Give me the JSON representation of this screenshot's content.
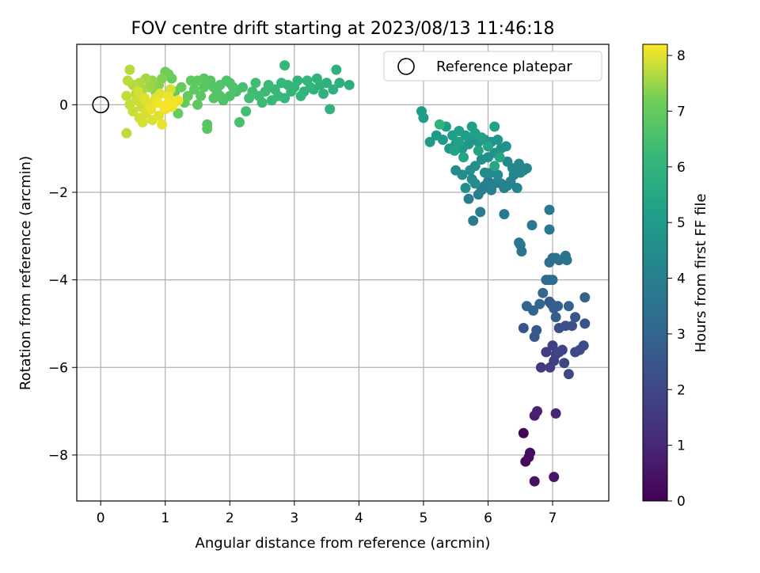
{
  "chart_data": {
    "type": "scatter",
    "title": "FOV centre drift starting at 2023/08/13 11:46:18",
    "xlabel": "Angular distance from reference (arcmin)",
    "ylabel": "Rotation from reference (arcmin)",
    "colorbar_label": "Hours from first FF file",
    "xlim": [
      -0.37,
      7.87
    ],
    "ylim": [
      -9.05,
      1.38
    ],
    "x_ticks": [
      0,
      1,
      2,
      3,
      4,
      5,
      6,
      7
    ],
    "y_ticks": [
      -8,
      -6,
      -4,
      -2,
      0
    ],
    "colorbar_range": [
      0,
      8.2
    ],
    "colorbar_ticks": [
      0,
      1,
      2,
      3,
      4,
      5,
      6,
      7,
      8
    ],
    "colormap": "viridis",
    "grid": true,
    "legend": {
      "position": "top-right",
      "entries": [
        "Reference platepar"
      ]
    },
    "reference_point": {
      "x": 0,
      "y": 0,
      "marker": "open-circle"
    },
    "columns": [
      "x",
      "y",
      "hours"
    ],
    "points": [
      [
        6.55,
        -7.5,
        0.1
      ],
      [
        6.58,
        -8.15,
        0.2
      ],
      [
        6.63,
        -8.05,
        0.3
      ],
      [
        6.65,
        -7.95,
        0.35
      ],
      [
        6.72,
        -8.6,
        0.45
      ],
      [
        7.02,
        -8.5,
        0.55
      ],
      [
        6.72,
        -7.1,
        0.8
      ],
      [
        6.76,
        -7.0,
        0.9
      ],
      [
        7.05,
        -7.05,
        1.0
      ],
      [
        6.82,
        -6.0,
        1.5
      ],
      [
        6.9,
        -5.65,
        1.6
      ],
      [
        6.96,
        -6.0,
        1.65
      ],
      [
        7.0,
        -5.5,
        1.7
      ],
      [
        7.02,
        -5.85,
        1.75
      ],
      [
        7.05,
        -5.7,
        1.8
      ],
      [
        7.1,
        -5.65,
        1.85
      ],
      [
        7.15,
        -5.6,
        1.9
      ],
      [
        7.18,
        -5.9,
        1.95
      ],
      [
        7.25,
        -6.15,
        2.0
      ],
      [
        7.35,
        -5.65,
        2.05
      ],
      [
        7.42,
        -5.6,
        2.1
      ],
      [
        7.48,
        -5.5,
        2.15
      ],
      [
        7.1,
        -5.1,
        2.2
      ],
      [
        7.2,
        -5.05,
        2.25
      ],
      [
        7.3,
        -5.05,
        2.3
      ],
      [
        7.5,
        -5.0,
        2.35
      ],
      [
        7.35,
        -4.85,
        2.4
      ],
      [
        6.55,
        -5.1,
        2.45
      ],
      [
        6.72,
        -5.3,
        2.5
      ],
      [
        6.75,
        -5.15,
        2.55
      ],
      [
        6.95,
        -4.5,
        2.6
      ],
      [
        6.98,
        -4.55,
        2.65
      ],
      [
        7.02,
        -4.65,
        2.7
      ],
      [
        7.05,
        -4.85,
        2.75
      ],
      [
        7.08,
        -4.6,
        2.8
      ],
      [
        7.25,
        -4.6,
        2.85
      ],
      [
        7.5,
        -4.4,
        2.9
      ],
      [
        6.6,
        -4.6,
        2.95
      ],
      [
        6.7,
        -4.7,
        3.0
      ],
      [
        6.8,
        -4.55,
        3.05
      ],
      [
        6.85,
        -4.3,
        3.1
      ],
      [
        6.9,
        -4.0,
        3.15
      ],
      [
        6.95,
        -4.0,
        3.2
      ],
      [
        7.0,
        -4.0,
        3.25
      ],
      [
        6.95,
        -3.6,
        3.3
      ],
      [
        7.0,
        -3.5,
        3.35
      ],
      [
        7.05,
        -3.5,
        3.4
      ],
      [
        7.1,
        -3.55,
        3.45
      ],
      [
        7.2,
        -3.45,
        3.5
      ],
      [
        7.22,
        -3.55,
        3.55
      ],
      [
        6.5,
        -3.2,
        3.55
      ],
      [
        6.52,
        -3.35,
        3.6
      ],
      [
        6.48,
        -3.15,
        3.65
      ],
      [
        6.95,
        -2.85,
        3.7
      ],
      [
        6.95,
        -2.4,
        3.72
      ],
      [
        6.68,
        -2.75,
        3.75
      ],
      [
        6.25,
        -2.5,
        3.8
      ],
      [
        5.77,
        -2.65,
        3.85
      ],
      [
        5.88,
        -2.45,
        3.88
      ],
      [
        5.7,
        -2.15,
        3.9
      ],
      [
        5.85,
        -2.05,
        3.93
      ],
      [
        5.9,
        -1.95,
        3.95
      ],
      [
        5.95,
        -1.85,
        3.97
      ],
      [
        6.0,
        -1.75,
        4.0
      ],
      [
        6.05,
        -1.95,
        4.02
      ],
      [
        6.1,
        -1.8,
        4.05
      ],
      [
        6.2,
        -1.8,
        4.08
      ],
      [
        6.25,
        -1.9,
        4.1
      ],
      [
        6.3,
        -1.85,
        4.12
      ],
      [
        6.35,
        -1.75,
        4.15
      ],
      [
        6.45,
        -1.9,
        4.18
      ],
      [
        6.4,
        -1.6,
        4.2
      ],
      [
        6.5,
        -1.55,
        4.22
      ],
      [
        6.55,
        -1.5,
        4.25
      ],
      [
        6.6,
        -1.45,
        4.28
      ],
      [
        6.48,
        -1.35,
        4.3
      ],
      [
        6.38,
        -1.45,
        4.32
      ],
      [
        6.3,
        -1.3,
        4.35
      ],
      [
        6.15,
        -1.6,
        4.38
      ],
      [
        6.05,
        -1.55,
        4.4
      ],
      [
        5.95,
        -1.55,
        4.42
      ],
      [
        5.8,
        -1.8,
        4.45
      ],
      [
        5.75,
        -1.7,
        4.48
      ],
      [
        5.6,
        -1.6,
        4.5
      ],
      [
        5.5,
        -1.5,
        4.52
      ],
      [
        5.72,
        -1.5,
        4.55
      ],
      [
        5.65,
        -1.9,
        4.58
      ],
      [
        5.8,
        -1.4,
        4.6
      ],
      [
        5.9,
        -1.25,
        4.62
      ],
      [
        6.0,
        -1.2,
        4.65
      ],
      [
        6.1,
        -1.1,
        4.68
      ],
      [
        6.2,
        -1.0,
        4.7
      ],
      [
        6.28,
        -0.95,
        4.72
      ],
      [
        6.15,
        -0.8,
        4.75
      ],
      [
        6.05,
        -0.85,
        4.78
      ],
      [
        5.95,
        -0.8,
        4.8
      ],
      [
        5.85,
        -0.85,
        4.82
      ],
      [
        5.75,
        -0.8,
        4.85
      ],
      [
        5.7,
        -0.9,
        4.88
      ],
      [
        5.6,
        -1.0,
        4.9
      ],
      [
        5.5,
        -0.9,
        4.92
      ],
      [
        5.4,
        -1.0,
        4.95
      ],
      [
        5.3,
        -0.8,
        4.98
      ],
      [
        5.2,
        -0.7,
        5.0
      ],
      [
        5.1,
        -0.85,
        5.02
      ],
      [
        5.0,
        -0.3,
        5.05
      ],
      [
        4.97,
        -0.15,
        5.08
      ],
      [
        5.35,
        -0.5,
        5.1
      ],
      [
        5.45,
        -0.7,
        5.12
      ],
      [
        5.55,
        -0.6,
        5.15
      ],
      [
        5.65,
        -0.7,
        5.18
      ],
      [
        5.75,
        -0.5,
        5.2
      ],
      [
        5.8,
        -0.65,
        5.22
      ],
      [
        5.9,
        -0.75,
        5.25
      ],
      [
        6.1,
        -0.5,
        5.28
      ],
      [
        5.55,
        -0.85,
        5.3
      ],
      [
        5.48,
        -1.05,
        5.32
      ],
      [
        5.62,
        -1.2,
        5.35
      ],
      [
        5.85,
        -1.05,
        5.38
      ],
      [
        6.0,
        -0.95,
        5.4
      ],
      [
        6.18,
        -1.2,
        5.42
      ],
      [
        6.1,
        -1.4,
        5.45
      ],
      [
        5.25,
        -0.45,
        6.0
      ],
      [
        3.85,
        0.45,
        5.8
      ],
      [
        3.6,
        0.35,
        5.85
      ],
      [
        3.55,
        -0.1,
        5.9
      ],
      [
        3.45,
        0.25,
        5.95
      ],
      [
        3.35,
        0.6,
        6.0
      ],
      [
        3.25,
        0.4,
        6.02
      ],
      [
        3.2,
        0.55,
        6.05
      ],
      [
        3.1,
        0.2,
        6.08
      ],
      [
        3.0,
        0.4,
        6.1
      ],
      [
        2.85,
        0.9,
        6.12
      ],
      [
        2.8,
        0.5,
        6.15
      ],
      [
        2.75,
        0.2,
        6.18
      ],
      [
        2.7,
        0.35,
        6.2
      ],
      [
        2.65,
        0.1,
        6.22
      ],
      [
        2.6,
        0.45,
        6.25
      ],
      [
        2.55,
        0.3,
        6.28
      ],
      [
        2.5,
        0.05,
        6.3
      ],
      [
        2.45,
        0.2,
        6.32
      ],
      [
        2.4,
        0.5,
        6.35
      ],
      [
        2.35,
        0.3,
        6.38
      ],
      [
        2.3,
        0.15,
        6.4
      ],
      [
        2.25,
        -0.15,
        6.42
      ],
      [
        2.2,
        0.4,
        6.45
      ],
      [
        3.65,
        0.8,
        5.82
      ],
      [
        3.7,
        0.5,
        5.84
      ],
      [
        3.5,
        0.5,
        5.86
      ],
      [
        3.4,
        0.45,
        5.88
      ],
      [
        3.3,
        0.35,
        5.92
      ],
      [
        3.15,
        0.3,
        5.97
      ],
      [
        3.05,
        0.55,
        6.03
      ],
      [
        2.95,
        0.3,
        6.07
      ],
      [
        2.9,
        0.45,
        6.09
      ],
      [
        2.85,
        0.15,
        6.11
      ],
      [
        2.15,
        -0.4,
        6.5
      ],
      [
        2.1,
        0.3,
        6.55
      ],
      [
        2.05,
        0.4,
        6.58
      ],
      [
        2.0,
        0.2,
        6.6
      ],
      [
        1.95,
        0.55,
        6.62
      ],
      [
        1.9,
        0.1,
        6.65
      ],
      [
        1.85,
        0.45,
        6.68
      ],
      [
        1.8,
        0.3,
        6.7
      ],
      [
        1.75,
        0.15,
        6.72
      ],
      [
        1.7,
        0.55,
        6.75
      ],
      [
        1.65,
        -0.45,
        6.78
      ],
      [
        1.65,
        -0.55,
        6.8
      ],
      [
        1.6,
        0.4,
        6.82
      ],
      [
        1.55,
        0.2,
        6.85
      ],
      [
        1.5,
        0.0,
        6.88
      ],
      [
        1.45,
        0.35,
        6.9
      ],
      [
        1.4,
        0.55,
        6.92
      ],
      [
        1.35,
        0.2,
        6.95
      ],
      [
        1.3,
        0.05,
        6.98
      ],
      [
        1.25,
        0.4,
        7.0
      ],
      [
        1.2,
        -0.2,
        7.02
      ],
      [
        1.15,
        0.3,
        7.05
      ],
      [
        1.1,
        0.6,
        7.08
      ],
      [
        1.05,
        0.7,
        7.1
      ],
      [
        1.0,
        0.75,
        7.12
      ],
      [
        1.5,
        0.55,
        6.92
      ],
      [
        1.6,
        0.6,
        6.82
      ],
      [
        1.75,
        0.4,
        6.73
      ],
      [
        1.85,
        0.2,
        6.69
      ],
      [
        2.0,
        0.5,
        6.61
      ],
      [
        0.95,
        0.6,
        7.3
      ],
      [
        0.9,
        0.45,
        7.35
      ],
      [
        0.85,
        0.3,
        7.4
      ],
      [
        0.8,
        0.55,
        7.45
      ],
      [
        0.75,
        0.4,
        7.5
      ],
      [
        0.7,
        0.6,
        7.55
      ],
      [
        0.65,
        0.35,
        7.6
      ],
      [
        0.6,
        0.5,
        7.62
      ],
      [
        0.55,
        0.25,
        7.65
      ],
      [
        0.5,
        0.45,
        7.68
      ],
      [
        0.45,
        0.8,
        7.7
      ],
      [
        0.42,
        0.55,
        7.72
      ],
      [
        0.4,
        -0.65,
        7.75
      ],
      [
        0.4,
        0.2,
        7.78
      ],
      [
        0.45,
        0.0,
        7.8
      ],
      [
        0.5,
        -0.15,
        7.82
      ],
      [
        0.55,
        0.1,
        7.85
      ],
      [
        0.6,
        -0.3,
        7.88
      ],
      [
        0.65,
        -0.4,
        7.9
      ],
      [
        0.7,
        -0.2,
        7.92
      ],
      [
        0.75,
        0.0,
        7.94
      ],
      [
        0.8,
        -0.35,
        7.96
      ],
      [
        0.85,
        0.15,
        7.98
      ],
      [
        0.9,
        -0.25,
        8.0
      ],
      [
        0.95,
        -0.45,
        8.02
      ],
      [
        1.0,
        -0.1,
        8.04
      ],
      [
        1.05,
        0.2,
        8.06
      ],
      [
        1.1,
        -0.05,
        8.08
      ],
      [
        1.15,
        0.05,
        8.1
      ],
      [
        1.2,
        0.1,
        8.12
      ],
      [
        0.72,
        0.05,
        8.0
      ],
      [
        0.78,
        -0.1,
        8.05
      ],
      [
        0.88,
        0.05,
        8.1
      ],
      [
        0.92,
        0.25,
        8.0
      ],
      [
        0.98,
        -0.05,
        8.15
      ],
      [
        1.02,
        0.0,
        8.16
      ],
      [
        0.68,
        0.15,
        7.95
      ],
      [
        0.58,
        0.3,
        7.9
      ],
      [
        0.63,
        -0.05,
        7.85
      ],
      [
        1.08,
        0.35,
        7.9
      ]
    ]
  }
}
